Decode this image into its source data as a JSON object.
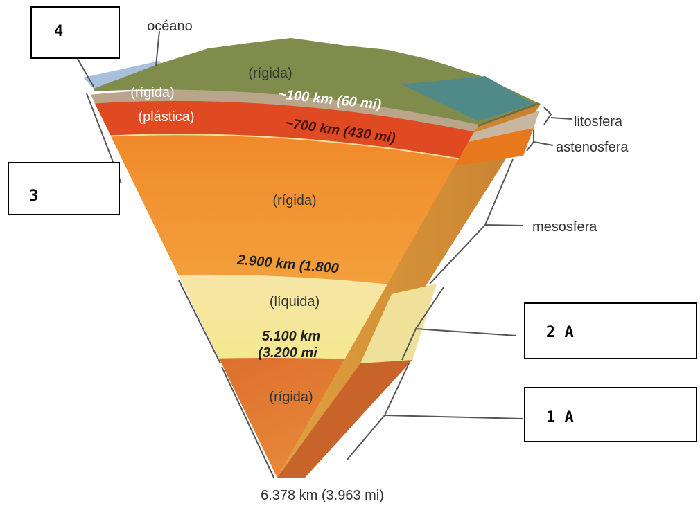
{
  "answer_boxes": [
    "4",
    "3",
    "2 A",
    "1 A"
  ],
  "side_labels": {
    "ocean": "océano",
    "lithosphere": "litosfera",
    "asthenosphere": "astenosfera",
    "mesosphere": "mesosfera"
  },
  "layers": {
    "surface": "(rígida)",
    "crust": {
      "state": "(rígida)",
      "depth": "~100 km (60 mi)"
    },
    "asthenosphere": {
      "state": "(plástica)",
      "depth": "~700 km (430 mi)"
    },
    "mesosphere": {
      "state": "(rígida)",
      "depth": "2.900 km (1.800"
    },
    "outer_core": {
      "state": "(líquida)",
      "depth_line_1": "5.100 km",
      "depth_line_2": "(3.200 mi"
    },
    "inner_core": {
      "state": "(rígida)"
    }
  },
  "center_depth": "6.378 km (3.963 mi)"
}
